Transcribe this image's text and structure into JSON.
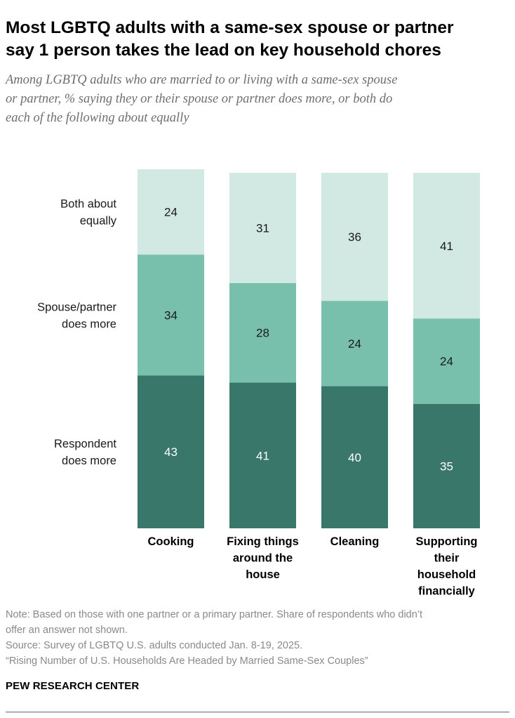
{
  "header": {
    "title_line1": "Most LGBTQ adults with a same-sex spouse or partner",
    "title_line2": "say 1 person takes the lead on key household chores",
    "subtitle_line1": "Among LGBTQ adults who are married to or living with a same-sex spouse",
    "subtitle_line2": "or partner, % saying they or their spouse or partner does more, or both do",
    "subtitle_line3": "each of the following about equally"
  },
  "chart_data": {
    "type": "bar",
    "stacked": true,
    "orientation": "vertical",
    "categories": [
      [
        "Cooking"
      ],
      [
        "Fixing things",
        "around the",
        "house"
      ],
      [
        "Cleaning"
      ],
      [
        "Supporting",
        "their",
        "household",
        "financially"
      ]
    ],
    "series": [
      {
        "name": [
          "Respondent",
          "does more"
        ],
        "values": [
          43,
          41,
          40,
          35
        ],
        "color": "#39776b",
        "label_color": "#ffffff"
      },
      {
        "name": [
          "Spouse/partner",
          "does more"
        ],
        "values": [
          34,
          28,
          24,
          24
        ],
        "color": "#78bfac",
        "label_color": "#1a1a1a"
      },
      {
        "name": [
          "Both about",
          "equally"
        ],
        "values": [
          24,
          31,
          36,
          41
        ],
        "color": "#d2e8e2",
        "label_color": "#1a1a1a"
      }
    ],
    "ylim": [
      0,
      101
    ],
    "grid": false,
    "legend": "left, inline beside first bar"
  },
  "footer": {
    "note_line1": "Note: Based on those with one partner or a primary partner. Share of respondents who didn’t",
    "note_line2": "offer an answer not shown.",
    "source": "Source: Survey of LGBTQ U.S. adults conducted Jan. 8-19, 2025.",
    "report": "“Rising Number of U.S. Households Are Headed by Married Same-Sex Couples”",
    "brand": "PEW RESEARCH CENTER"
  }
}
